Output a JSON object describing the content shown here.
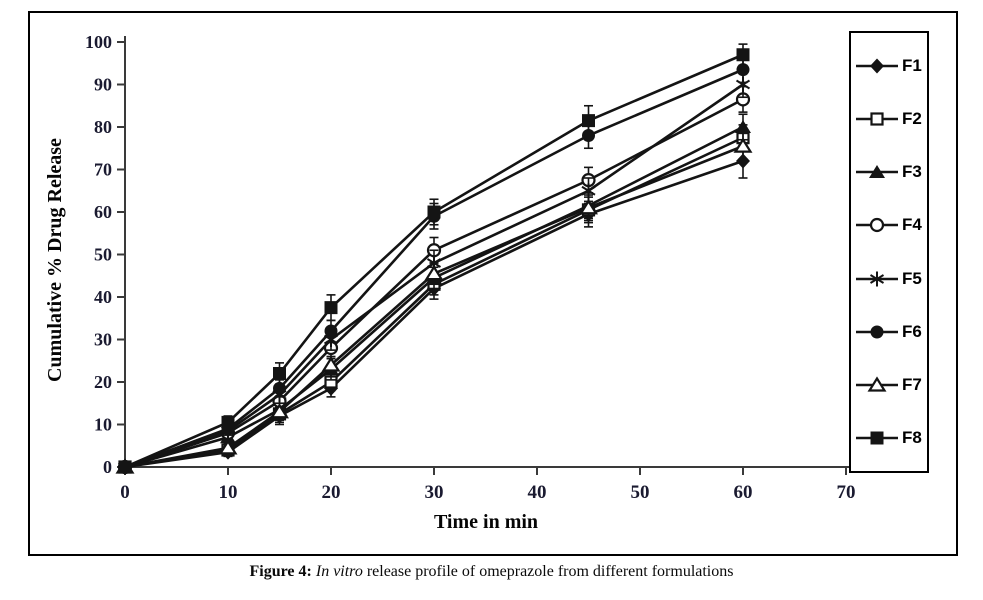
{
  "figure": {
    "caption_bold": "Figure 4:",
    "caption_italic": " In vitro ",
    "caption_rest": "release profile of omeprazole from different formulations"
  },
  "colors": {
    "line": "#141414",
    "tick_label": "#1a1a30",
    "axis": "#3a3a3a",
    "background": "#ffffff"
  },
  "chart_data": {
    "type": "line",
    "title": "",
    "xlabel": "Time in min",
    "ylabel": "Cumulative % Drug Release",
    "xlim": [
      0,
      70
    ],
    "ylim": [
      0,
      100
    ],
    "x_ticks": [
      0,
      10,
      20,
      30,
      40,
      50,
      60,
      70
    ],
    "y_ticks": [
      0,
      10,
      20,
      30,
      40,
      50,
      60,
      70,
      80,
      90,
      100
    ],
    "grid": false,
    "legend_position": "right",
    "x": [
      0,
      10,
      15,
      20,
      30,
      45,
      60
    ],
    "series": [
      {
        "name": "F1",
        "marker": "filled-diamond",
        "values": [
          0,
          3.5,
          12,
          18.5,
          42,
          59.5,
          72
        ],
        "errors": [
          0,
          1,
          2,
          2,
          2.5,
          3,
          4
        ]
      },
      {
        "name": "F2",
        "marker": "open-square",
        "values": [
          0,
          4,
          12.5,
          20,
          43,
          60.5,
          77.5
        ],
        "errors": [
          0,
          1,
          2,
          2,
          2.5,
          3,
          3
        ]
      },
      {
        "name": "F3",
        "marker": "filled-triangle",
        "values": [
          0,
          7,
          13.5,
          23,
          44.5,
          61.5,
          80
        ],
        "errors": [
          0,
          1,
          2,
          2.5,
          2.5,
          3,
          3
        ]
      },
      {
        "name": "F4",
        "marker": "open-circle",
        "values": [
          0,
          8,
          15.5,
          28,
          51,
          67.5,
          86.5
        ],
        "errors": [
          0,
          1,
          2,
          2.5,
          3,
          3,
          3
        ]
      },
      {
        "name": "F5",
        "marker": "asterisk",
        "values": [
          0,
          8.5,
          17,
          30,
          48,
          65,
          90
        ],
        "errors": [
          0,
          1,
          2,
          2.5,
          3,
          3,
          3
        ]
      },
      {
        "name": "F6",
        "marker": "filled-circle",
        "values": [
          0,
          9,
          18.5,
          32,
          59,
          78,
          93.5
        ],
        "errors": [
          0,
          1,
          2,
          2.5,
          3,
          3,
          3
        ]
      },
      {
        "name": "F7",
        "marker": "open-triangle",
        "values": [
          0,
          4.5,
          13,
          24,
          45.5,
          61,
          75.5
        ],
        "errors": [
          0,
          1,
          2,
          2,
          2.5,
          3,
          3
        ]
      },
      {
        "name": "F8",
        "marker": "filled-square",
        "values": [
          0,
          10.5,
          22,
          37.5,
          60,
          81.5,
          97
        ],
        "errors": [
          0,
          1.5,
          2.5,
          3,
          3,
          3.5,
          2.5
        ]
      }
    ]
  }
}
